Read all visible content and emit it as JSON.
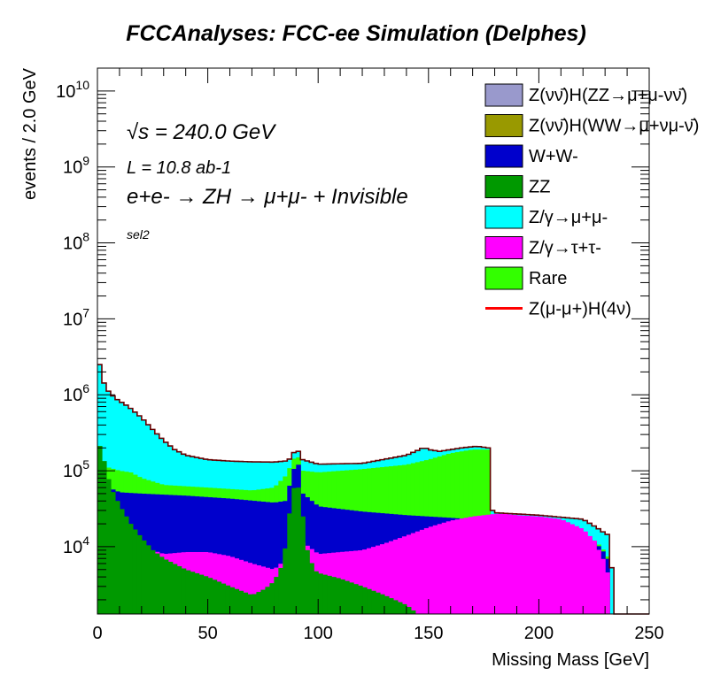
{
  "title": "FCCAnalyses: FCC-ee Simulation (Delphes)",
  "annotations": {
    "sqrt_s": "√s = 240.0 GeV",
    "lumi": "L = 10.8 ab-1",
    "process": "e+e- → ZH → μ+μ- + Invisible",
    "selection": "sel2"
  },
  "chart_data": {
    "type": "area",
    "stacked": true,
    "xlabel": "Missing Mass [GeV]",
    "ylabel": "events / 2.0 GeV",
    "xlim": [
      0,
      250
    ],
    "ylim": [
      1300,
      20000000000
    ],
    "ylog": true,
    "xticks": [
      "0",
      "50",
      "100",
      "150",
      "200",
      "250"
    ],
    "yticks": [
      "10^4",
      "10^5",
      "10^6",
      "10^7",
      "10^8",
      "10^9",
      "10^10"
    ],
    "legend_position": "top-right",
    "totals_points": [
      [
        0,
        9000000
      ],
      [
        1,
        2500000
      ],
      [
        2,
        1700000
      ],
      [
        4,
        1200000
      ],
      [
        8,
        900000
      ],
      [
        14,
        700000
      ],
      [
        20,
        500000
      ],
      [
        25,
        350000
      ],
      [
        30,
        250000
      ],
      [
        35,
        190000
      ],
      [
        40,
        160000
      ],
      [
        50,
        140000
      ],
      [
        60,
        134000
      ],
      [
        70,
        131000
      ],
      [
        80,
        130000
      ],
      [
        86,
        135000
      ],
      [
        88,
        150000
      ],
      [
        90,
        200000
      ],
      [
        91,
        180000
      ],
      [
        93,
        140000
      ],
      [
        100,
        122000
      ],
      [
        120,
        125000
      ],
      [
        140,
        160000
      ],
      [
        146,
        190000
      ],
      [
        148,
        205000
      ],
      [
        150,
        190000
      ],
      [
        155,
        180000
      ],
      [
        165,
        200000
      ],
      [
        172,
        210000
      ],
      [
        177,
        200000
      ],
      [
        178,
        180000
      ],
      [
        179,
        30000
      ],
      [
        180,
        28000
      ],
      [
        200,
        26000
      ],
      [
        220,
        23000
      ],
      [
        226,
        18000
      ],
      [
        230,
        15000
      ],
      [
        232,
        14000
      ],
      [
        234,
        2000
      ],
      [
        235,
        1300
      ],
      [
        250,
        1300
      ]
    ],
    "series": [
      {
        "name": "Z(νν̄)H(WW→μ+νμ-ν̄)",
        "points": [
          [
            0,
            1300
          ],
          [
            250,
            1300
          ]
        ]
      },
      {
        "name": "Z(νν̄)H(ZZ→μ+μ-νν̄)",
        "points": [
          [
            0,
            1300
          ],
          [
            250,
            1300
          ]
        ]
      },
      {
        "name": "ZZ",
        "points": [
          [
            0,
            250000
          ],
          [
            2,
            180000
          ],
          [
            4,
            100000
          ],
          [
            6,
            60000
          ],
          [
            10,
            35000
          ],
          [
            15,
            20000
          ],
          [
            20,
            13000
          ],
          [
            25,
            9000
          ],
          [
            30,
            7000
          ],
          [
            40,
            5000
          ],
          [
            50,
            4000
          ],
          [
            60,
            3000
          ],
          [
            70,
            2300
          ],
          [
            76,
            2800
          ],
          [
            80,
            3500
          ],
          [
            84,
            6000
          ],
          [
            86,
            15000
          ],
          [
            88,
            50000
          ],
          [
            90,
            70000
          ],
          [
            91,
            60000
          ],
          [
            93,
            25000
          ],
          [
            95,
            9000
          ],
          [
            98,
            5000
          ],
          [
            100,
            4500
          ],
          [
            110,
            3800
          ],
          [
            120,
            3000
          ],
          [
            130,
            2300
          ],
          [
            140,
            1700
          ],
          [
            145,
            1300
          ],
          [
            250,
            1300
          ]
        ]
      },
      {
        "name": "Z/γ→τ+τ-",
        "points": [
          [
            0,
            1300
          ],
          [
            1,
            100000
          ],
          [
            3,
            60000
          ],
          [
            6,
            30000
          ],
          [
            10,
            18000
          ],
          [
            20,
            10000
          ],
          [
            30,
            8000
          ],
          [
            40,
            8500
          ],
          [
            50,
            8500
          ],
          [
            60,
            7500
          ],
          [
            70,
            6000
          ],
          [
            80,
            5000
          ],
          [
            88,
            8000
          ],
          [
            92,
            12000
          ],
          [
            100,
            8000
          ],
          [
            110,
            8500
          ],
          [
            120,
            9000
          ],
          [
            130,
            11000
          ],
          [
            140,
            14000
          ],
          [
            150,
            18000
          ],
          [
            160,
            22000
          ],
          [
            170,
            25000
          ],
          [
            180,
            27000
          ],
          [
            185,
            27000
          ],
          [
            190,
            26000
          ],
          [
            200,
            25000
          ],
          [
            210,
            23000
          ],
          [
            220,
            17000
          ],
          [
            225,
            12000
          ],
          [
            230,
            6000
          ],
          [
            232,
            3500
          ],
          [
            233,
            1300
          ],
          [
            250,
            1300
          ]
        ]
      },
      {
        "name": "W+W-",
        "points": [
          [
            0,
            1300
          ],
          [
            2,
            80000
          ],
          [
            5,
            60000
          ],
          [
            10,
            52000
          ],
          [
            20,
            50000
          ],
          [
            40,
            47000
          ],
          [
            60,
            43000
          ],
          [
            80,
            38000
          ],
          [
            85,
            40000
          ],
          [
            88,
            80000
          ],
          [
            90,
            140000
          ],
          [
            91,
            120000
          ],
          [
            93,
            50000
          ],
          [
            100,
            34000
          ],
          [
            120,
            29000
          ],
          [
            140,
            26000
          ],
          [
            160,
            24000
          ],
          [
            178,
            22000
          ],
          [
            180,
            21000
          ],
          [
            200,
            18000
          ],
          [
            210,
            16000
          ],
          [
            220,
            14000
          ],
          [
            226,
            11000
          ],
          [
            230,
            8000
          ],
          [
            232,
            6000
          ],
          [
            233,
            1300
          ],
          [
            250,
            1300
          ]
        ]
      },
      {
        "name": "Rare",
        "points": [
          [
            0,
            1300
          ],
          [
            2,
            130000
          ],
          [
            5,
            110000
          ],
          [
            10,
            100000
          ],
          [
            15,
            95000
          ],
          [
            20,
            80000
          ],
          [
            30,
            65000
          ],
          [
            50,
            60000
          ],
          [
            70,
            55000
          ],
          [
            80,
            60000
          ],
          [
            86,
            90000
          ],
          [
            88,
            130000
          ],
          [
            90,
            160000
          ],
          [
            91,
            150000
          ],
          [
            93,
            100000
          ],
          [
            100,
            95000
          ],
          [
            120,
            105000
          ],
          [
            140,
            120000
          ],
          [
            150,
            140000
          ],
          [
            160,
            170000
          ],
          [
            170,
            190000
          ],
          [
            177,
            190000
          ],
          [
            178,
            170000
          ],
          [
            179,
            21000
          ],
          [
            180,
            20000
          ],
          [
            200,
            18500
          ],
          [
            210,
            16500
          ],
          [
            220,
            14500
          ],
          [
            226,
            11500
          ],
          [
            230,
            8500
          ],
          [
            232,
            6500
          ],
          [
            233,
            1300
          ],
          [
            250,
            1300
          ]
        ]
      },
      {
        "name": "Z/γ→μ+μ-",
        "points": [
          [
            0,
            9000000
          ],
          [
            1,
            2500000
          ],
          [
            2,
            1700000
          ],
          [
            4,
            1200000
          ],
          [
            8,
            900000
          ],
          [
            14,
            700000
          ],
          [
            20,
            500000
          ],
          [
            25,
            350000
          ],
          [
            30,
            250000
          ],
          [
            35,
            190000
          ],
          [
            40,
            160000
          ],
          [
            50,
            140000
          ],
          [
            60,
            134000
          ],
          [
            70,
            131000
          ],
          [
            80,
            130000
          ],
          [
            86,
            135000
          ],
          [
            88,
            150000
          ],
          [
            90,
            200000
          ],
          [
            91,
            180000
          ],
          [
            93,
            140000
          ],
          [
            100,
            122000
          ],
          [
            120,
            125000
          ],
          [
            140,
            160000
          ],
          [
            146,
            190000
          ],
          [
            148,
            205000
          ],
          [
            150,
            190000
          ],
          [
            155,
            180000
          ],
          [
            165,
            200000
          ],
          [
            172,
            210000
          ],
          [
            177,
            200000
          ],
          [
            178,
            180000
          ],
          [
            179,
            30000
          ],
          [
            180,
            28000
          ],
          [
            200,
            26000
          ],
          [
            220,
            23000
          ],
          [
            226,
            18000
          ],
          [
            230,
            15000
          ],
          [
            232,
            14000
          ],
          [
            234,
            2000
          ],
          [
            235,
            1300
          ],
          [
            250,
            1300
          ]
        ]
      },
      {
        "name": "Z(μ-μ+)H(4ν)",
        "points": [
          [
            0,
            1300
          ],
          [
            250,
            1300
          ]
        ]
      }
    ],
    "legend": [
      {
        "label": "Z(νν̄)H(ZZ→μ+μ-νν̄)",
        "color": "#9999cc",
        "kind": "box"
      },
      {
        "label": "Z(νν̄)H(WW→μ+νμ-ν̄)",
        "color": "#999900",
        "kind": "box"
      },
      {
        "label": "W+W-",
        "color": "#0000cc",
        "kind": "box"
      },
      {
        "label": "ZZ",
        "color": "#009900",
        "kind": "box"
      },
      {
        "label": "Z/γ→μ+μ-",
        "color": "#00ffff",
        "kind": "box"
      },
      {
        "label": "Z/γ→τ+τ-",
        "color": "#ff00ff",
        "kind": "box"
      },
      {
        "label": "Rare",
        "color": "#33ff00",
        "kind": "box"
      },
      {
        "label": "Z(μ-μ+)H(4ν)",
        "color": "#ff0000",
        "kind": "line"
      }
    ],
    "layer_order": [
      "Z/γ→μ+μ-",
      "Rare",
      "W+W-",
      "Z/γ→τ+τ-",
      "ZZ"
    ],
    "colors": {
      "Z/γ→μ+μ-": "#00ffff",
      "Rare": "#33ff00",
      "W+W-": "#0000cc",
      "Z/γ→τ+τ-": "#ff00ff",
      "ZZ": "#009900",
      "outline": "#660000"
    }
  }
}
